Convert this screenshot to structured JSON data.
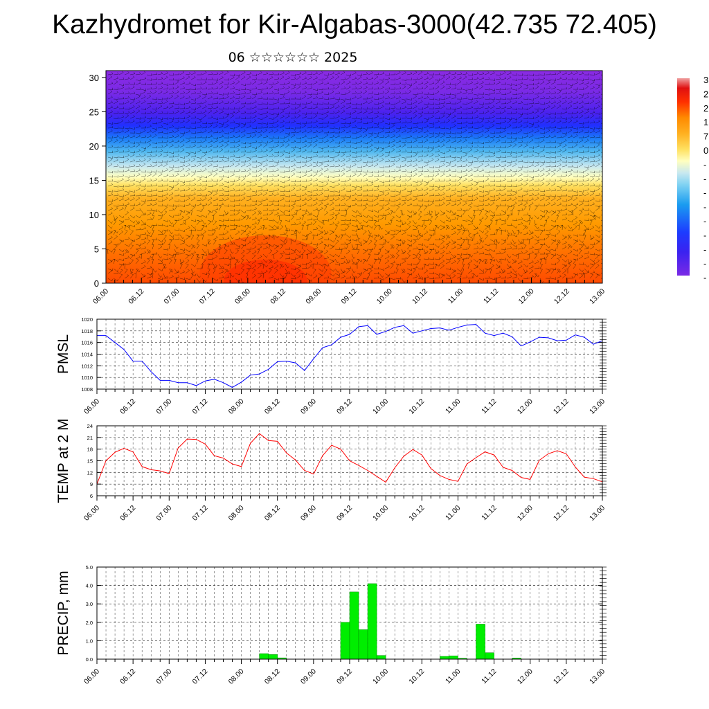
{
  "title": "Kazhydromet for Kir-Algabas-3000(42.735 72.405)",
  "subtitle": "06 ☆☆☆☆☆☆ 2025",
  "colors": {
    "pmsl_line": "#0000ff",
    "temp_line": "#ff0000",
    "precip_bar": "#00ee00",
    "precip_bar_edge": "#008800"
  },
  "x_tick_labels": [
    "06.00",
    "06.12",
    "07.00",
    "07.12",
    "08.00",
    "08.12",
    "09.00",
    "09.12",
    "10.00",
    "10.12",
    "11.00",
    "11.12",
    "12.00",
    "12.12",
    "13.00"
  ],
  "colorbar_labels": [
    "3",
    "2",
    "2",
    "1",
    "7",
    "0",
    "-",
    "-",
    "-",
    "-",
    "-",
    "-",
    "-",
    "-",
    "-"
  ],
  "chart_data": [
    {
      "type": "heatmap",
      "name": "cross-section",
      "ylim": [
        0,
        31
      ],
      "yticks": [
        0,
        5,
        10,
        15,
        20,
        25,
        30
      ],
      "xlim": [
        0,
        168
      ],
      "colorscale": [
        "#8a2be2",
        "#6a28e8",
        "#3a22f0",
        "#1c3cff",
        "#1a9cf0",
        "#7fd2f2",
        "#c8e8f0",
        "#ffffc0",
        "#ffe060",
        "#ffb020",
        "#ff9a00",
        "#ff7a00",
        "#ff4a00"
      ],
      "overlay": "wind barbs"
    },
    {
      "type": "line",
      "name": "pmsl",
      "ylabel": "PMSL",
      "ylim": [
        1008,
        1020
      ],
      "yticks": [
        1008,
        1010,
        1012,
        1014,
        1016,
        1018,
        1020
      ],
      "x_hours": [
        0,
        3,
        6,
        9,
        12,
        15,
        18,
        21,
        24,
        27,
        30,
        33,
        36,
        39,
        42,
        45,
        48,
        51,
        54,
        57,
        60,
        63,
        66,
        69,
        72,
        75,
        78,
        81,
        84,
        87,
        90,
        93,
        96,
        99,
        102,
        105,
        108,
        111,
        114,
        117,
        120,
        123,
        126,
        129,
        132,
        135,
        138,
        141,
        144,
        147,
        150,
        153,
        156,
        159,
        162,
        165,
        168
      ],
      "values": [
        1017.2,
        1017.2,
        1016,
        1014.8,
        1012.8,
        1012.8,
        1011,
        1009.5,
        1009.5,
        1009.1,
        1009.1,
        1008.6,
        1009.4,
        1009.7,
        1009.1,
        1008.3,
        1009.2,
        1010.4,
        1010.6,
        1011.4,
        1012.7,
        1012.8,
        1012.5,
        1011.2,
        1013.2,
        1015.1,
        1015.6,
        1016.9,
        1017.4,
        1018.7,
        1018.9,
        1017.4,
        1017.9,
        1018.6,
        1018.9,
        1017.6,
        1018,
        1018.4,
        1018.5,
        1018.1,
        1018.6,
        1019,
        1019.1,
        1017.6,
        1017.2,
        1017.6,
        1017,
        1015.4,
        1016.1,
        1016.9,
        1016.8,
        1016.3,
        1016.4,
        1017.3,
        1016.9,
        1015.7,
        1016.3
      ]
    },
    {
      "type": "line",
      "name": "temp",
      "ylabel": "TEMP at 2 M",
      "ylim": [
        6,
        24
      ],
      "yticks": [
        6,
        9,
        12,
        15,
        18,
        21,
        24
      ],
      "x_hours": [
        0,
        3,
        6,
        9,
        12,
        15,
        18,
        21,
        24,
        27,
        30,
        33,
        36,
        39,
        42,
        45,
        48,
        51,
        54,
        57,
        60,
        63,
        66,
        69,
        72,
        75,
        78,
        81,
        84,
        87,
        90,
        93,
        96,
        99,
        102,
        105,
        108,
        111,
        114,
        117,
        120,
        123,
        126,
        129,
        132,
        135,
        138,
        141,
        144,
        147,
        150,
        153,
        156,
        159,
        162,
        165,
        168
      ],
      "values": [
        9,
        15,
        17.2,
        18.2,
        17.3,
        13.5,
        12.7,
        12.4,
        11.7,
        18.3,
        20.6,
        20.5,
        19.3,
        16.3,
        15.7,
        14.2,
        13.5,
        19.5,
        22,
        20.2,
        20,
        17,
        15.2,
        12.5,
        11.6,
        16.3,
        19,
        18,
        15,
        13.8,
        12.5,
        11,
        9.5,
        13.2,
        16.2,
        17.9,
        16.5,
        13,
        11.2,
        10.2,
        9.7,
        14.2,
        15.8,
        17.3,
        16.5,
        13.3,
        12.5,
        10.7,
        10.2,
        15.1,
        16.8,
        17.6,
        16.8,
        13.4,
        10.8,
        10.4,
        9.6
      ]
    },
    {
      "type": "bar",
      "name": "precip",
      "ylabel": "PRECIP, mm",
      "ylim": [
        0,
        5
      ],
      "yticks": [
        "0.0",
        "1.0",
        "2.0",
        "3.0",
        "4.0",
        "5.0"
      ],
      "bar_width_hours": 3,
      "bars": [
        {
          "start_hour": 54,
          "value": 0.3
        },
        {
          "start_hour": 57,
          "value": 0.25
        },
        {
          "start_hour": 60,
          "value": 0.07
        },
        {
          "start_hour": 81,
          "value": 2.0
        },
        {
          "start_hour": 84,
          "value": 3.65
        },
        {
          "start_hour": 87,
          "value": 1.6
        },
        {
          "start_hour": 90,
          "value": 4.1
        },
        {
          "start_hour": 93,
          "value": 0.2
        },
        {
          "start_hour": 114,
          "value": 0.15
        },
        {
          "start_hour": 117,
          "value": 0.18
        },
        {
          "start_hour": 120,
          "value": 0.05
        },
        {
          "start_hour": 126,
          "value": 1.9
        },
        {
          "start_hour": 129,
          "value": 0.35
        },
        {
          "start_hour": 138,
          "value": 0.06
        }
      ]
    }
  ]
}
